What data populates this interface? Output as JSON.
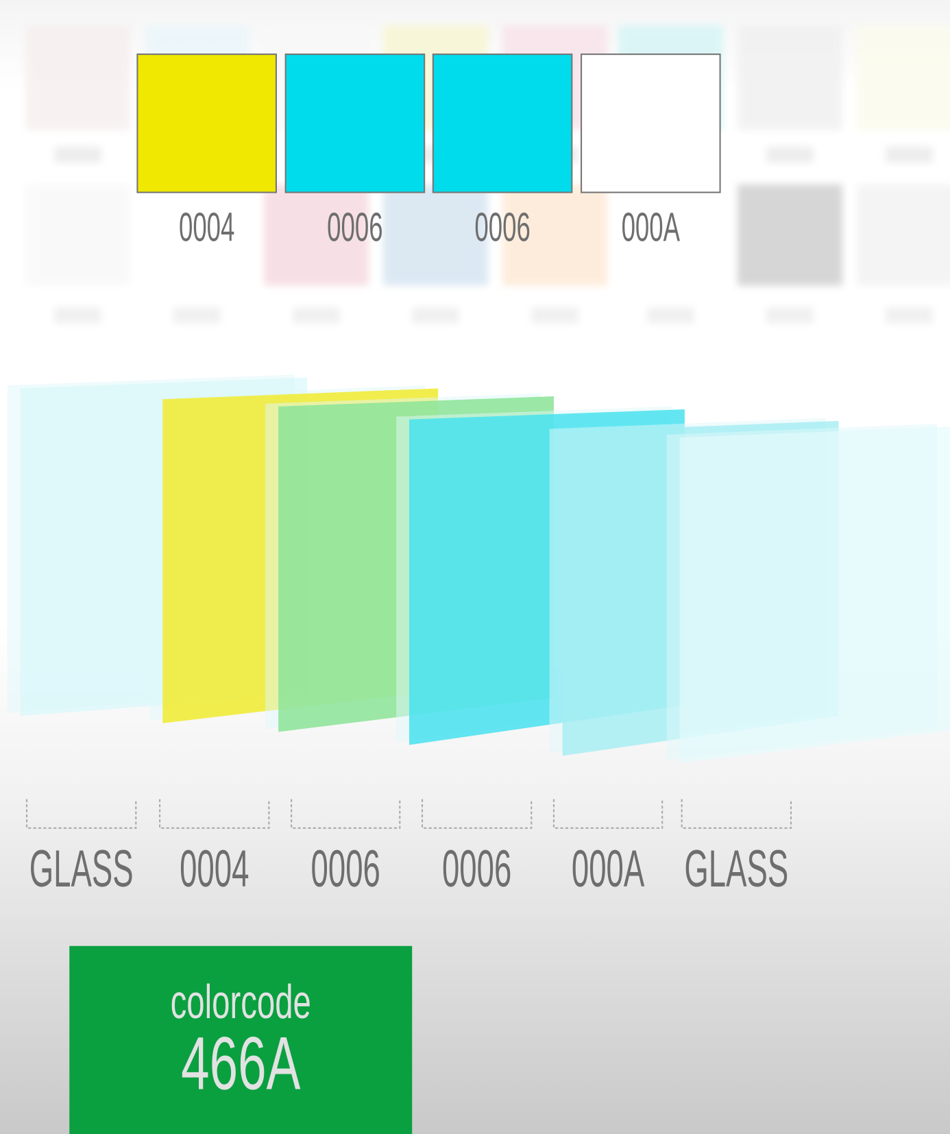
{
  "top_swatches": [
    {
      "code": "0004",
      "color": "#f0e800"
    },
    {
      "code": "0006",
      "color": "#00dcec"
    },
    {
      "code": "0006",
      "color": "#00dcec"
    },
    {
      "code": "000A",
      "color": "#ffffff"
    }
  ],
  "background_tiles": {
    "row1": [
      "#f6eeee",
      "#eaf6fb",
      "#f8f8f8",
      "#f8f6d0",
      "#f8e2ea",
      "#d4f4f6",
      "#f0f0f0",
      "#fbfbec"
    ],
    "row2": [
      "#f8f8f8",
      "#ffffff",
      "#f5d8df",
      "#d4e3f0",
      "#fde8d3",
      "#ffffff",
      "#cccccc",
      "#f2f2f2"
    ]
  },
  "layers": [
    {
      "label": "GLASS",
      "color": "#d9f8fb"
    },
    {
      "label": "0004",
      "color": "#f0ec3e"
    },
    {
      "label": "0006",
      "color": "#8ee49a"
    },
    {
      "label": "0006",
      "color": "#48e2ee"
    },
    {
      "label": "000A",
      "color": "#a4eef3"
    },
    {
      "label": "GLASS",
      "color": "#e4fafc"
    }
  ],
  "colorcode": {
    "label": "colorcode",
    "value": "466A",
    "color": "#0aa040"
  }
}
